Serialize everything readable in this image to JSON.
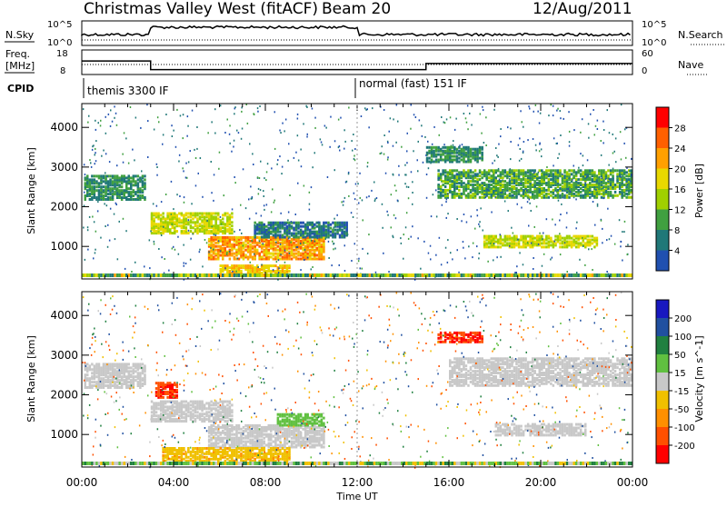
{
  "header": {
    "station": "Christmas Valley West (fitACF)",
    "beam": "Beam 20",
    "date": "12/Aug/2011"
  },
  "noise_panel": {
    "left_label": "N.Sky",
    "right_label": "N.Search",
    "left_ticks": [
      "10^5",
      "10^0"
    ],
    "right_ticks": [
      "10^5",
      "10^0"
    ]
  },
  "freq_panel": {
    "left_label_1": "Freq.",
    "left_label_2": "[MHz]",
    "right_label": "Nave",
    "left_ticks": [
      "18",
      "8"
    ],
    "right_ticks": [
      "60",
      "0"
    ]
  },
  "cpid": {
    "label": "CPID",
    "segments": [
      {
        "text": "themis 3300 IF",
        "start_hour": 0
      },
      {
        "text": "normal (fast) 151 IF",
        "start_hour": 12
      }
    ]
  },
  "time_axis": {
    "label": "Time UT",
    "ticks": [
      "00:00",
      "04:00",
      "08:00",
      "12:00",
      "16:00",
      "20:00",
      "00:00"
    ]
  },
  "range_axis": {
    "label": "Slant Range [km]",
    "ticks": [
      "1000",
      "2000",
      "3000",
      "4000"
    ]
  },
  "power_scale": {
    "label": "Power [dB]",
    "ticks": [
      "28",
      "24",
      "20",
      "16",
      "12",
      "8",
      "4"
    ],
    "colors": [
      "#ff0000",
      "#ff6000",
      "#ffa000",
      "#e8d800",
      "#a0d000",
      "#40a040",
      "#207878",
      "#2050b0",
      "#0000ff"
    ]
  },
  "velocity_scale": {
    "label": "Velocity [m s^-1]",
    "ticks": [
      "200",
      "100",
      "50",
      "15",
      "-15",
      "-50",
      "-100",
      "-200"
    ],
    "colors": [
      "#1818c0",
      "#2050a0",
      "#208040",
      "#60c040",
      "#c8c8c8",
      "#f0c000",
      "#ff9000",
      "#ff5000",
      "#ff0000"
    ]
  },
  "chart_data": {
    "type": "heatmap",
    "x_range_hours": [
      0,
      24
    ],
    "y_range_km": [
      180,
      4600
    ],
    "noise_sky_level": "about 10^1 to 10^2, raised 03:00-12:00",
    "freq_MHz": [
      {
        "from_hour": 0,
        "to_hour": 3,
        "value": 13.5
      },
      {
        "from_hour": 3,
        "to_hour": 15,
        "value": 10.0
      },
      {
        "from_hour": 15,
        "to_hour": 24,
        "value": 12.5
      }
    ],
    "power_regions": [
      {
        "t0": 0.1,
        "t1": 2.8,
        "r0": 2150,
        "r1": 2750,
        "level": 10
      },
      {
        "t0": 3.0,
        "t1": 6.5,
        "r0": 1300,
        "r1": 1800,
        "level": 18
      },
      {
        "t0": 5.5,
        "t1": 10.5,
        "r0": 650,
        "r1": 1200,
        "level": 24
      },
      {
        "t0": 6.0,
        "t1": 9.0,
        "r0": 250,
        "r1": 500,
        "level": 22
      },
      {
        "t0": 7.5,
        "t1": 11.5,
        "r0": 1200,
        "r1": 1600,
        "level": 8
      },
      {
        "t0": 15.5,
        "t1": 24.0,
        "r0": 2200,
        "r1": 2900,
        "level": 12
      },
      {
        "t0": 17.5,
        "t1": 22.5,
        "r0": 950,
        "r1": 1250,
        "level": 18
      },
      {
        "t0": 15.0,
        "t1": 17.5,
        "r0": 3100,
        "r1": 3500,
        "level": 10
      }
    ],
    "velocity_regions": [
      {
        "t0": 0.1,
        "t1": 2.8,
        "r0": 2150,
        "r1": 2750,
        "velocity": 0
      },
      {
        "t0": 3.0,
        "t1": 6.5,
        "r0": 1300,
        "r1": 1800,
        "velocity": 0
      },
      {
        "t0": 5.5,
        "t1": 10.5,
        "r0": 650,
        "r1": 1200,
        "velocity": 0
      },
      {
        "t0": 3.5,
        "t1": 9.0,
        "r0": 300,
        "r1": 650,
        "velocity": -50
      },
      {
        "t0": 8.5,
        "t1": 10.5,
        "r0": 1200,
        "r1": 1500,
        "velocity": 40
      },
      {
        "t0": 15.5,
        "t1": 17.5,
        "r0": 3300,
        "r1": 3550,
        "velocity": -200
      },
      {
        "t0": 3.2,
        "t1": 4.2,
        "r0": 1900,
        "r1": 2300,
        "velocity": -200
      },
      {
        "t0": 16.0,
        "t1": 24.0,
        "r0": 2200,
        "r1": 2900,
        "velocity": 0
      },
      {
        "t0": 18.0,
        "t1": 22.0,
        "r0": 950,
        "r1": 1250,
        "velocity": 0
      }
    ]
  }
}
